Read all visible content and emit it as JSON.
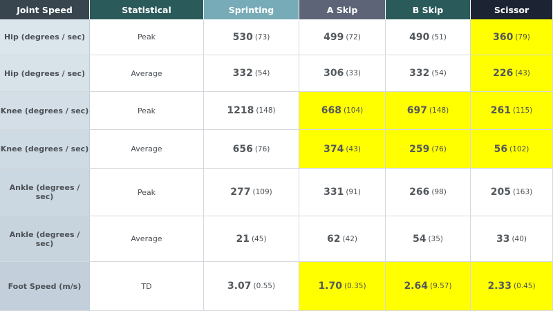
{
  "chart_data": {
    "type": "table",
    "columns": [
      "Joint Speed",
      "Statistical",
      "Sprinting",
      "A Skip",
      "B Skip",
      "Scissor"
    ],
    "header_colors": [
      "#38454f",
      "#2b5a5b",
      "#76abb7",
      "#5d6478",
      "#2b5a5b",
      "#1c2433"
    ],
    "highlight_color": "#ffff00",
    "first_column_bg_top": "#dbe5ec",
    "first_column_bg_bottom": "#c3d0db",
    "rows": [
      {
        "label": "Hip (degrees / sec)",
        "stat": "Peak",
        "cells": [
          {
            "value": "530",
            "sd": "(73)",
            "highlight": false
          },
          {
            "value": "499",
            "sd": "(72)",
            "highlight": false
          },
          {
            "value": "490",
            "sd": "(51)",
            "highlight": false
          },
          {
            "value": "360",
            "sd": "(79)",
            "highlight": true
          }
        ]
      },
      {
        "label": "Hip (degrees / sec)",
        "stat": "Average",
        "cells": [
          {
            "value": "332",
            "sd": "(54)",
            "highlight": false
          },
          {
            "value": "306",
            "sd": "(33)",
            "highlight": false
          },
          {
            "value": "332",
            "sd": "(54)",
            "highlight": false
          },
          {
            "value": "226",
            "sd": "(43)",
            "highlight": true
          }
        ]
      },
      {
        "label": "Knee (degrees / sec)",
        "stat": "Peak",
        "cells": [
          {
            "value": "1218",
            "sd": "(148)",
            "highlight": false
          },
          {
            "value": "668",
            "sd": "(104)",
            "highlight": true
          },
          {
            "value": "697",
            "sd": "(148)",
            "highlight": true
          },
          {
            "value": "261",
            "sd": "(115)",
            "highlight": true
          }
        ]
      },
      {
        "label": "Knee (degrees / sec)",
        "stat": "Average",
        "cells": [
          {
            "value": "656",
            "sd": "(76)",
            "highlight": false
          },
          {
            "value": "374",
            "sd": "(43)",
            "highlight": true
          },
          {
            "value": "259",
            "sd": "(76)",
            "highlight": true
          },
          {
            "value": "56",
            "sd": "(102)",
            "highlight": true
          }
        ]
      },
      {
        "label": "Ankle (degrees / sec)",
        "stat": "Peak",
        "cells": [
          {
            "value": "277",
            "sd": "(109)",
            "highlight": false
          },
          {
            "value": "331",
            "sd": "(91)",
            "highlight": false
          },
          {
            "value": "266",
            "sd": "(98)",
            "highlight": false
          },
          {
            "value": "205",
            "sd": "(163)",
            "highlight": false
          }
        ]
      },
      {
        "label": "Ankle (degrees / sec)",
        "stat": "Average",
        "cells": [
          {
            "value": "21",
            "sd": "(45)",
            "highlight": false
          },
          {
            "value": "62",
            "sd": "(42)",
            "highlight": false
          },
          {
            "value": "54",
            "sd": "(35)",
            "highlight": false
          },
          {
            "value": "33",
            "sd": "(40)",
            "highlight": false
          }
        ]
      },
      {
        "label": "Foot Speed (m/s)",
        "stat": "TD",
        "cells": [
          {
            "value": "3.07",
            "sd": "(0.55)",
            "highlight": false
          },
          {
            "value": "1.70",
            "sd": "(0.35)",
            "highlight": true
          },
          {
            "value": "2.64",
            "sd": "(9.57)",
            "highlight": true
          },
          {
            "value": "2.33",
            "sd": "(0.45)",
            "highlight": true
          }
        ]
      }
    ]
  }
}
